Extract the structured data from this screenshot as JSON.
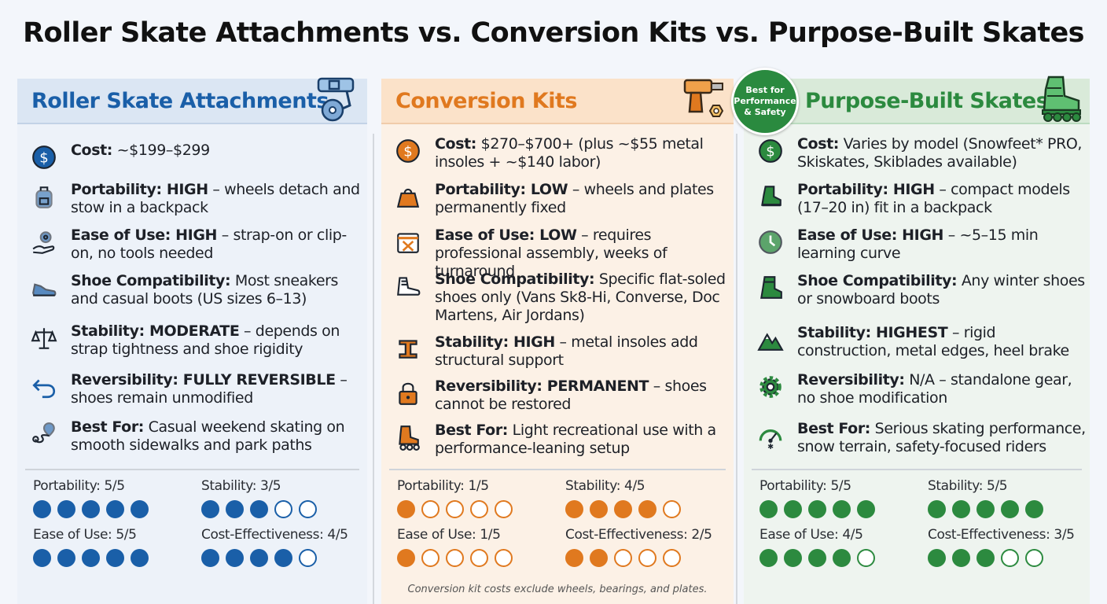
{
  "title": "Roller Skate Attachments vs. Conversion Kits vs. Purpose-Built Skates",
  "colors": {
    "blue": "#1a5fa8",
    "orange": "#e0791f",
    "green": "#2c8a3f"
  },
  "badge": "Best for Performance & Safety",
  "footnote": "Conversion kit costs exclude wheels, bearings, and plates.",
  "columns": [
    {
      "heading": "Roller Skate Attachments",
      "header_icon": "strap-wheel-icon",
      "rows": [
        {
          "icon": "dollar-icon",
          "label": "Cost:",
          "text": " ~$199–$299"
        },
        {
          "icon": "backpack-icon",
          "label": "Portability: HIGH",
          "text": " – wheels detach and stow in a backpack"
        },
        {
          "icon": "hand-gear-icon",
          "label": "Ease of Use: HIGH",
          "text": " – strap-on or clip-on, no tools needed"
        },
        {
          "icon": "sneaker-icon",
          "label": "Shoe Compatibility:",
          "text": " Most sneakers and casual boots (US sizes 6–13)"
        },
        {
          "icon": "scale-icon",
          "label": "Stability: MODERATE",
          "text": " – depends on strap tightness and shoe rigidity"
        },
        {
          "icon": "undo-icon",
          "label": "Reversibility: FULLY REVERSIBLE",
          "text": " – shoes remain unmodified"
        },
        {
          "icon": "route-pin-icon",
          "label": "Best For:",
          "text": " Casual weekend skating on smooth sidewalks and park paths"
        }
      ],
      "ratings": [
        {
          "label": "Portability: 5/5",
          "value": 5
        },
        {
          "label": "Stability: 3/5",
          "value": 3
        },
        {
          "label": "Ease of Use: 5/5",
          "value": 5
        },
        {
          "label": "Cost-Effectiveness: 4/5",
          "value": 4
        }
      ]
    },
    {
      "heading": "Conversion Kits",
      "header_icon": "drill-nut-icon",
      "rows": [
        {
          "icon": "dollar-icon",
          "label": "Cost:",
          "text": " $270–$700+ (plus ~$55 metal insoles + ~$140 labor)"
        },
        {
          "icon": "weight-icon",
          "label": "Portability: LOW",
          "text": " – wheels and plates permanently fixed"
        },
        {
          "icon": "calendar-tools-icon",
          "label": "Ease of Use: LOW",
          "text": " – requires professional assembly, weeks of turnaround"
        },
        {
          "icon": "high-top-shoe-icon",
          "label": "Shoe Compatibility:",
          "text": " Specific flat-soled shoes only (Vans Sk8-Hi, Converse, Doc Martens, Air Jordans)"
        },
        {
          "icon": "steel-beam-icon",
          "label": "Stability: HIGH",
          "text": " – metal insoles add structural support"
        },
        {
          "icon": "lock-icon",
          "label": "Reversibility: PERMANENT",
          "text": " – shoes cannot be restored"
        },
        {
          "icon": "skate-icon",
          "label": "Best For:",
          "text": " Light recreational use with a performance-leaning setup"
        }
      ],
      "ratings": [
        {
          "label": "Portability: 1/5",
          "value": 1
        },
        {
          "label": "Stability: 4/5",
          "value": 4
        },
        {
          "label": "Ease of Use: 1/5",
          "value": 1
        },
        {
          "label": "Cost-Effectiveness: 2/5",
          "value": 2
        }
      ]
    },
    {
      "heading": "Purpose-Built Skates",
      "header_icon": "inline-skate-icon",
      "rows": [
        {
          "icon": "dollar-icon",
          "label": "Cost:",
          "text": " Varies by model (Snowfeet* PRO, Skiskates, Skiblades available)"
        },
        {
          "icon": "boot-icon",
          "label": "Portability: HIGH",
          "text": " – compact models (17–20 in) fit in a backpack"
        },
        {
          "icon": "clock-icon",
          "label": "Ease of Use: HIGH",
          "text": " –  ~5–15 min learning curve"
        },
        {
          "icon": "winter-boot-icon",
          "label": "Shoe Compatibility:",
          "text": " Any winter shoes or snowboard boots"
        },
        {
          "icon": "mountain-icon",
          "label": "Stability: HIGHEST",
          "text": " – rigid construction, metal edges, heel brake"
        },
        {
          "icon": "gear-icon",
          "label": "Reversibility:",
          "text": " N/A – standalone gear, no shoe modification"
        },
        {
          "icon": "gauge-icon",
          "label": "Best For:",
          "text": " Serious skating performance, snow terrain, safety-focused riders"
        }
      ],
      "ratings": [
        {
          "label": "Portability: 5/5",
          "value": 5
        },
        {
          "label": "Stability: 5/5",
          "value": 5
        },
        {
          "label": "Ease of Use: 4/5",
          "value": 4
        },
        {
          "label": "Cost-Effectiveness: 3/5",
          "value": 3
        }
      ]
    }
  ]
}
